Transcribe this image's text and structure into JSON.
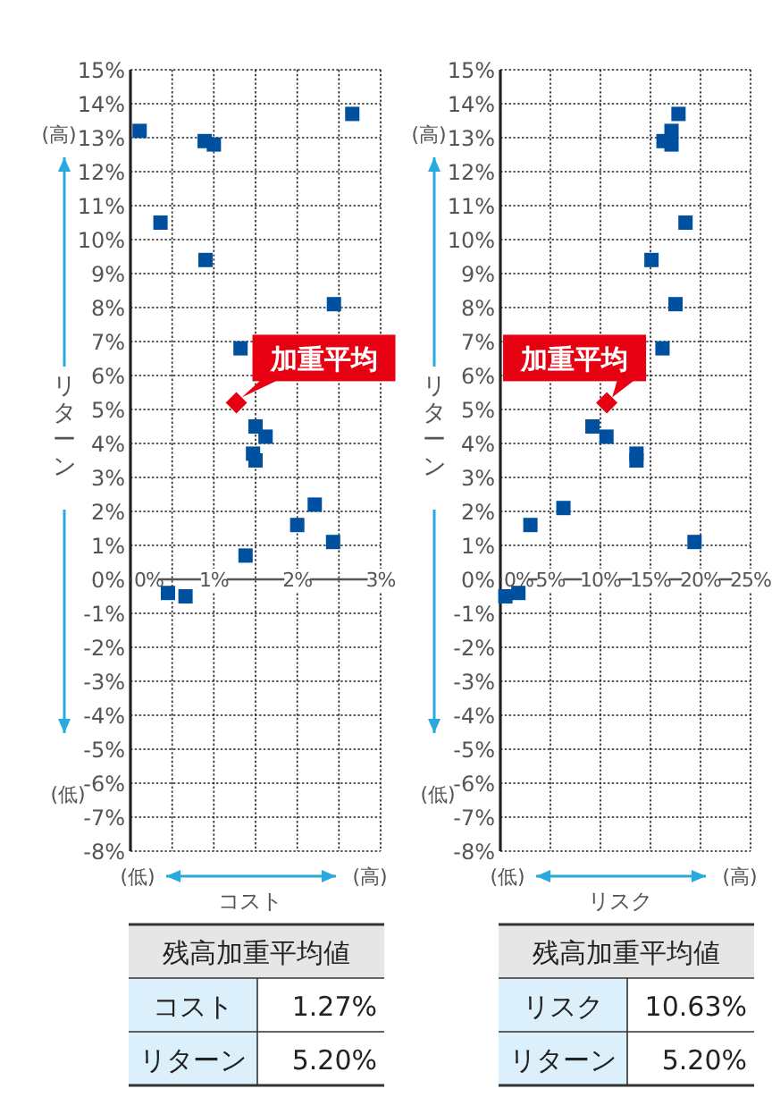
{
  "chart_data": [
    {
      "type": "scatter",
      "xlabel": "コスト",
      "ylabel": "リターン",
      "xlim": [
        0,
        3
      ],
      "ylim": [
        -8,
        15
      ],
      "grid": true,
      "xticks": [
        {
          "value": 0,
          "label": "0%"
        },
        {
          "value": 0.5,
          "label": null
        },
        {
          "value": 1,
          "label": "1%"
        },
        {
          "value": 1.5,
          "label": null
        },
        {
          "value": 2,
          "label": "2%"
        },
        {
          "value": 2.5,
          "label": null
        },
        {
          "value": 3,
          "label": "3%"
        }
      ],
      "yticks": [
        {
          "value": -8,
          "label": "-8%"
        },
        {
          "value": -7,
          "label": "-7%"
        },
        {
          "value": -6,
          "label": "-6%"
        },
        {
          "value": -5,
          "label": "-5%"
        },
        {
          "value": -4,
          "label": "-4%"
        },
        {
          "value": -3,
          "label": "-3%"
        },
        {
          "value": -2,
          "label": "-2%"
        },
        {
          "value": -1,
          "label": "-1%"
        },
        {
          "value": 0,
          "label": "0%"
        },
        {
          "value": 1,
          "label": "1%"
        },
        {
          "value": 2,
          "label": "2%"
        },
        {
          "value": 3,
          "label": "3%"
        },
        {
          "value": 4,
          "label": "4%"
        },
        {
          "value": 5,
          "label": "5%"
        },
        {
          "value": 6,
          "label": "6%"
        },
        {
          "value": 7,
          "label": "7%"
        },
        {
          "value": 8,
          "label": "8%"
        },
        {
          "value": 9,
          "label": "9%"
        },
        {
          "value": 10,
          "label": "10%"
        },
        {
          "value": 11,
          "label": "11%"
        },
        {
          "value": 12,
          "label": "12%"
        },
        {
          "value": 13,
          "label": "13%"
        },
        {
          "value": 14,
          "label": "14%"
        },
        {
          "value": 15,
          "label": "15%"
        }
      ],
      "series": [
        {
          "color": "#0050a0",
          "marker": "square",
          "x": [
            0.11,
            0.36,
            0.89,
            1.0,
            0.9,
            2.66,
            2.44,
            1.32,
            1.5,
            1.62,
            1.47,
            1.5,
            2.21,
            2.0,
            2.43,
            1.38,
            0.45,
            0.66
          ],
          "values": [
            13.2,
            10.5,
            12.9,
            12.8,
            9.4,
            13.7,
            8.1,
            6.8,
            4.5,
            4.2,
            3.7,
            3.5,
            2.2,
            1.6,
            1.1,
            0.7,
            -0.4,
            -0.5
          ]
        },
        {
          "color": "#e60012",
          "marker": "diamond",
          "x": [
            1.27
          ],
          "values": [
            5.2
          ]
        }
      ],
      "annotations": [
        {
          "text": "加重平均",
          "x": 1.27,
          "y": 5.2
        },
        "(高)",
        "(低)",
        "(低)",
        "(高)",
        "残高加重平均値",
        "コスト",
        "1.27%",
        "リターン",
        "5.20%"
      ]
    },
    {
      "type": "scatter",
      "xlabel": "リスク",
      "ylabel": "リターン",
      "xlim": [
        0,
        25
      ],
      "ylim": [
        -8,
        15
      ],
      "grid": true,
      "xticks": [
        {
          "value": 0,
          "label": "0%"
        },
        {
          "value": 5,
          "label": "5%"
        },
        {
          "value": 10,
          "label": "10%"
        },
        {
          "value": 15,
          "label": "15%"
        },
        {
          "value": 20,
          "label": "20%"
        },
        {
          "value": 25,
          "label": "25%"
        }
      ],
      "yticks": [
        {
          "value": -8,
          "label": "-8%"
        },
        {
          "value": -7,
          "label": "-7%"
        },
        {
          "value": -6,
          "label": "-6%"
        },
        {
          "value": -5,
          "label": "-5%"
        },
        {
          "value": -4,
          "label": "-4%"
        },
        {
          "value": -3,
          "label": "-3%"
        },
        {
          "value": -2,
          "label": "-2%"
        },
        {
          "value": -1,
          "label": "-1%"
        },
        {
          "value": 0,
          "label": "0%"
        },
        {
          "value": 1,
          "label": "1%"
        },
        {
          "value": 2,
          "label": "2%"
        },
        {
          "value": 3,
          "label": "3%"
        },
        {
          "value": 4,
          "label": "4%"
        },
        {
          "value": 5,
          "label": "5%"
        },
        {
          "value": 6,
          "label": "6%"
        },
        {
          "value": 7,
          "label": "7%"
        },
        {
          "value": 8,
          "label": "8%"
        },
        {
          "value": 9,
          "label": "9%"
        },
        {
          "value": 10,
          "label": "10%"
        },
        {
          "value": 11,
          "label": "11%"
        },
        {
          "value": 12,
          "label": "12%"
        },
        {
          "value": 13,
          "label": "13%"
        },
        {
          "value": 14,
          "label": "14%"
        },
        {
          "value": 15,
          "label": "15%"
        }
      ],
      "series": [
        {
          "color": "#0050a0",
          "marker": "square",
          "x": [
            17.8,
            17.1,
            16.3,
            17.1,
            18.5,
            15.1,
            17.5,
            16.2,
            9.2,
            10.6,
            13.6,
            13.6,
            6.3,
            3.0,
            19.4,
            1.8,
            0.5
          ],
          "values": [
            13.7,
            13.2,
            12.9,
            12.8,
            10.5,
            9.4,
            8.1,
            6.8,
            4.5,
            4.2,
            3.7,
            3.5,
            2.1,
            1.6,
            1.1,
            -0.4,
            -0.5
          ]
        },
        {
          "color": "#e60012",
          "marker": "diamond",
          "x": [
            10.63
          ],
          "values": [
            5.2
          ]
        }
      ],
      "annotations": [
        {
          "text": "加重平均",
          "x": 10.63,
          "y": 5.2
        },
        "(高)",
        "(低)",
        "(低)",
        "(高)",
        "残高加重平均値",
        "リスク",
        "10.63%",
        "リターン",
        "5.20%"
      ]
    }
  ]
}
